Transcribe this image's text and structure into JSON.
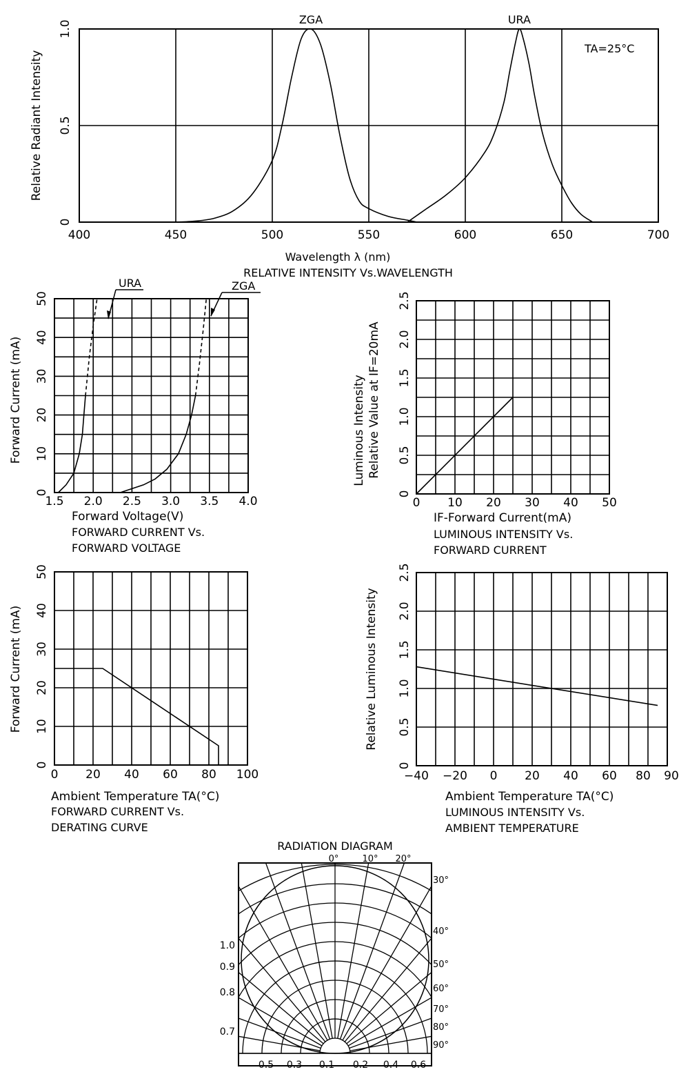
{
  "chart_data": [
    {
      "id": "spectrum",
      "type": "line",
      "title": "RELATIVE INTENSITY Vs.WAVELENGTH",
      "xlabel": "Wavelength λ (nm)",
      "ylabel": "Relative Radiant Intensity",
      "xlim": [
        400,
        700
      ],
      "ylim": [
        0,
        1.0
      ],
      "xticks": [
        "400",
        "450",
        "500",
        "550",
        "600",
        "650",
        "700"
      ],
      "yticks": [
        "0",
        "0.5",
        "1.0"
      ],
      "grid": true,
      "annotations": [
        {
          "text": "TA=25°C",
          "position": "top-right"
        }
      ],
      "series": [
        {
          "name": "ZGA",
          "x": [
            450,
            460,
            470,
            480,
            490,
            500,
            505,
            510,
            515,
            520,
            525,
            530,
            535,
            540,
            545,
            550,
            560,
            570,
            575
          ],
          "y": [
            0,
            0.005,
            0.02,
            0.06,
            0.15,
            0.32,
            0.5,
            0.75,
            0.95,
            1.0,
            0.92,
            0.72,
            0.45,
            0.23,
            0.11,
            0.07,
            0.03,
            0.01,
            0
          ]
        },
        {
          "name": "URA",
          "x": [
            570,
            580,
            590,
            600,
            610,
            615,
            620,
            623,
            626,
            628,
            630,
            633,
            636,
            640,
            645,
            650,
            655,
            660,
            666
          ],
          "y": [
            0,
            0.07,
            0.14,
            0.23,
            0.36,
            0.46,
            0.62,
            0.78,
            0.93,
            1.0,
            0.95,
            0.82,
            0.65,
            0.46,
            0.3,
            0.19,
            0.1,
            0.04,
            0
          ]
        }
      ]
    },
    {
      "id": "iv",
      "type": "line",
      "title_lines": [
        "FORWARD CURRENT Vs.",
        "FORWARD VOLTAGE"
      ],
      "xlabel": "Forward Voltage(V)",
      "ylabel": "Forward Current (mA)",
      "xlim": [
        1.5,
        4.0
      ],
      "ylim": [
        0,
        50
      ],
      "xticks": [
        "1.5",
        "2.0",
        "2.5",
        "3.0",
        "3.5",
        "4.0"
      ],
      "yticks": [
        "0",
        "10",
        "20",
        "30",
        "40",
        "50"
      ],
      "grid": true,
      "series": [
        {
          "name": "URA",
          "x": [
            1.55,
            1.65,
            1.75,
            1.82,
            1.86,
            1.88,
            1.9
          ],
          "y": [
            0,
            2,
            5,
            10,
            15,
            20,
            25
          ],
          "dashed_from": 25,
          "dashed_x": [
            1.9,
            1.95,
            2.0,
            2.05
          ],
          "dashed_y": [
            25,
            35,
            43,
            50
          ]
        },
        {
          "name": "ZGA",
          "x": [
            2.35,
            2.5,
            2.65,
            2.8,
            2.95,
            3.1,
            3.2,
            3.27,
            3.32
          ],
          "y": [
            0,
            1,
            2,
            3.5,
            6,
            10,
            15,
            20,
            25
          ],
          "dashed_x": [
            3.32,
            3.37,
            3.42,
            3.46
          ],
          "dashed_y": [
            25,
            33,
            42,
            50
          ]
        }
      ],
      "callouts": [
        "URA",
        "ZGA"
      ]
    },
    {
      "id": "lum_if",
      "type": "line",
      "title_lines": [
        "LUMINOUS INTENSITY Vs.",
        "FORWARD CURRENT"
      ],
      "xlabel": "IF-Forward Current(mA)",
      "ylabel_lines": [
        "Luminous Intensity",
        "Relative Value at IF=20mA"
      ],
      "xlim": [
        0,
        50
      ],
      "ylim": [
        0,
        2.5
      ],
      "xticks": [
        "0",
        "10",
        "20",
        "30",
        "40",
        "50"
      ],
      "yticks": [
        "0",
        "0.5",
        "1.0",
        "1.5",
        "2.0",
        "2.5"
      ],
      "grid": true,
      "series": [
        {
          "x": [
            0,
            25
          ],
          "y": [
            0,
            1.25
          ]
        }
      ]
    },
    {
      "id": "derating",
      "type": "line",
      "title_lines": [
        "FORWARD CURRENT Vs.",
        "DERATING CURVE"
      ],
      "xlabel": "Ambient Temperature TA(°C)",
      "ylabel": "Forward Current (mA)",
      "xlim": [
        0,
        100
      ],
      "ylim": [
        0,
        50
      ],
      "xticks": [
        "0",
        "20",
        "40",
        "60",
        "80",
        "100"
      ],
      "yticks": [
        "0",
        "10",
        "20",
        "30",
        "40",
        "50"
      ],
      "grid": true,
      "series": [
        {
          "x": [
            0,
            25,
            85,
            85
          ],
          "y": [
            25,
            25,
            5,
            0
          ]
        }
      ]
    },
    {
      "id": "lum_temp",
      "type": "line",
      "title_lines": [
        "LUMINOUS INTENSITY Vs.",
        "AMBIENT TEMPERATURE"
      ],
      "xlabel": "Ambient Temperature TA(°C)",
      "ylabel": "Relative Luminous Intensity",
      "xlim": [
        -40,
        90
      ],
      "ylim": [
        0,
        2.5
      ],
      "xtick_values": [
        -40,
        -20,
        0,
        20,
        40,
        60,
        80,
        90
      ],
      "xticks": [
        "−40",
        "−20",
        "0",
        "20",
        "40",
        "60",
        "80",
        "90"
      ],
      "yticks": [
        "0",
        "0.5",
        "1.0",
        "1.5",
        "2.0",
        "2.5"
      ],
      "grid": true,
      "series": [
        {
          "x": [
            -40,
            85
          ],
          "y": [
            1.28,
            0.78
          ]
        }
      ]
    },
    {
      "id": "radiation",
      "type": "polar",
      "title": "RADIATION DIAGRAM",
      "angle_labels": [
        "0°",
        "10°",
        "20°",
        "30°",
        "40°",
        "50°",
        "60°",
        "70°",
        "80°",
        "90°"
      ],
      "radial_labels_left": [
        "1.0",
        "0.9",
        "0.8",
        "0.7"
      ],
      "bottom_labels": [
        "0.5",
        "0.3",
        "0.1",
        "0.2",
        "0.4",
        "0.6"
      ],
      "series": [
        {
          "name": "pattern",
          "shape": "circle",
          "values_at_angles": [
            1.0,
            0.98,
            0.94,
            0.87,
            0.77,
            0.64,
            0.5,
            0.34,
            0.17,
            0
          ]
        }
      ]
    }
  ]
}
